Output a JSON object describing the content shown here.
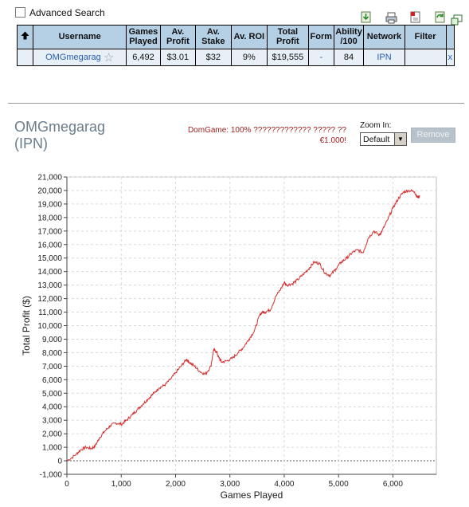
{
  "advanced_search": {
    "label": "Advanced Search",
    "checked": false
  },
  "toolbar": {
    "icons": [
      "download-icon",
      "print-icon",
      "pdf-icon",
      "refresh-icon",
      "popout-icon"
    ]
  },
  "stats_table": {
    "sort_icon": "up-arrow-icon",
    "headers": {
      "username": "Username",
      "games_played": "Games Played",
      "av_profit": "Av. Profit",
      "av_stake": "Av. Stake",
      "av_roi": "Av. ROI",
      "total_profit": "Total Profit",
      "form": "Form",
      "ability": "Ability /100",
      "network": "Network",
      "filter": "Filter"
    },
    "row": {
      "username": "OMGmegarag",
      "games_played": "6,492",
      "av_profit": "$3.01",
      "av_stake": "$32",
      "av_roi": "9%",
      "total_profit": "$19,555",
      "form": "-",
      "ability": "84",
      "network": "IPN",
      "filter": "",
      "remove": "x"
    }
  },
  "player": {
    "name": "OMGmegarag",
    "network": "(IPN)"
  },
  "note": {
    "line1": "DomGame: 100% ????????????? ????? ??",
    "line2": "€1.000!"
  },
  "zoom": {
    "label": "Zoom In:",
    "value": "Default"
  },
  "remove_button": "Remove",
  "colors": {
    "header_bg": "#b5cfe5",
    "row_bg": "#e8f0f7",
    "line": "#d32f2f",
    "link": "#2a5db0",
    "name": "#6b7d8c",
    "note": "#a02020"
  },
  "chart_data": {
    "type": "line",
    "xlabel": "Games Played",
    "ylabel": "Total Profit ($)",
    "xlim": [
      0,
      6800
    ],
    "ylim": [
      -1000,
      21000
    ],
    "x_ticks": [
      "0",
      "1,000",
      "2,000",
      "3,000",
      "4,000",
      "5,000",
      "6,000"
    ],
    "y_ticks": [
      "-1,000",
      "0",
      "1,000",
      "2,000",
      "3,000",
      "4,000",
      "5,000",
      "6,000",
      "7,000",
      "8,000",
      "9,000",
      "10,000",
      "11,000",
      "12,000",
      "13,000",
      "14,000",
      "15,000",
      "16,000",
      "17,000",
      "18,000",
      "19,000",
      "20,000",
      "21,000"
    ],
    "grid": true,
    "series": [
      {
        "x": [
          0,
          150,
          250,
          350,
          450,
          520,
          600,
          700,
          800,
          900,
          1000,
          1100,
          1200,
          1300,
          1400,
          1500,
          1600,
          1700,
          1800,
          1900,
          2000,
          2100,
          2200,
          2250,
          2350,
          2450,
          2550,
          2650,
          2700,
          2750,
          2800,
          2850,
          2950,
          3050,
          3150,
          3250,
          3350,
          3450,
          3550,
          3600,
          3650,
          3750,
          3850,
          3950,
          4000,
          4050,
          4150,
          4250,
          4350,
          4450,
          4550,
          4650,
          4750,
          4850,
          4950,
          5050,
          5150,
          5250,
          5350,
          5450,
          5550,
          5650,
          5750,
          5800,
          5900,
          6000,
          6100,
          6200,
          6300,
          6400,
          6450,
          6492
        ],
        "y": [
          0,
          400,
          800,
          1000,
          900,
          1100,
          1700,
          2200,
          2600,
          2800,
          2700,
          3000,
          3400,
          3800,
          4200,
          4600,
          5000,
          5400,
          5600,
          6000,
          6500,
          7000,
          7500,
          7300,
          7000,
          6600,
          6400,
          7000,
          8200,
          8100,
          7600,
          7300,
          7400,
          7600,
          8000,
          8400,
          9000,
          9600,
          10800,
          11000,
          11000,
          11200,
          12200,
          12800,
          13200,
          13000,
          13100,
          13400,
          13800,
          14200,
          14700,
          14600,
          13900,
          13700,
          14200,
          14700,
          15000,
          15400,
          15600,
          15400,
          16500,
          17000,
          16700,
          17000,
          17800,
          18700,
          19400,
          19900,
          20000,
          19900,
          19500,
          19555
        ]
      }
    ]
  }
}
